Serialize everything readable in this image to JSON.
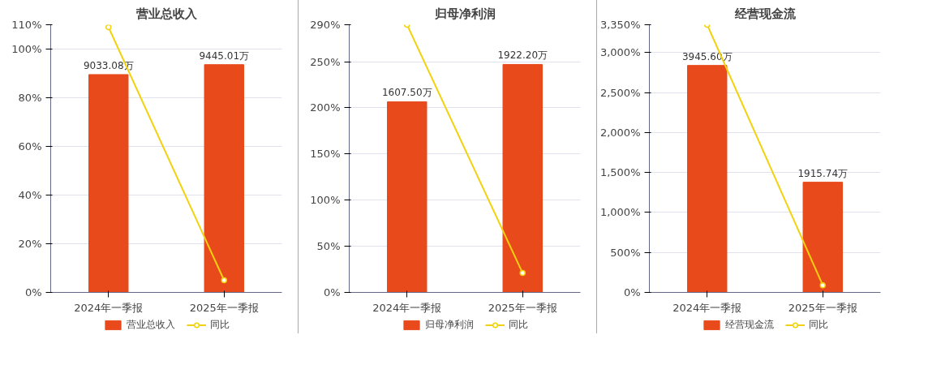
{
  "chart_data": [
    {
      "type": "bar",
      "title": "营业总收入",
      "categories": [
        "2024年一季报",
        "2025年一季报"
      ],
      "ylim": [
        0,
        110
      ],
      "yticks": [
        {
          "value": 0,
          "label": "0%"
        },
        {
          "value": 20,
          "label": "20%"
        },
        {
          "value": 40,
          "label": "40%"
        },
        {
          "value": 60,
          "label": "60%"
        },
        {
          "value": 80,
          "label": "80%"
        },
        {
          "value": 100,
          "label": "100%"
        },
        {
          "value": 110,
          "label": "110%"
        }
      ],
      "y2lim": [
        0,
        11100
      ],
      "grid": "y",
      "legend": "bottom",
      "tick_labels": "y",
      "series": [
        {
          "name": "营业总收入",
          "axis": "y2",
          "color": "#e84a1c",
          "values": [
            9033.08,
            9445.01
          ],
          "value_labels": [
            "9033.08万",
            "9445.01万"
          ]
        },
        {
          "name": "同比",
          "type": "line",
          "color": "#f2d20f",
          "marker": "circle",
          "values": [
            109,
            5
          ]
        }
      ]
    },
    {
      "type": "bar",
      "title": "归母净利润",
      "categories": [
        "2024年一季报",
        "2025年一季报"
      ],
      "ylim": [
        0,
        290
      ],
      "yticks": [
        {
          "value": 0,
          "label": "0%"
        },
        {
          "value": 50,
          "label": "50%"
        },
        {
          "value": 100,
          "label": "100%"
        },
        {
          "value": 150,
          "label": "150%"
        },
        {
          "value": 200,
          "label": "200%"
        },
        {
          "value": 250,
          "label": "250%"
        },
        {
          "value": 290,
          "label": "290%"
        }
      ],
      "y2lim": [
        0,
        2257
      ],
      "grid": "y",
      "legend": "bottom",
      "tick_labels": "y",
      "series": [
        {
          "name": "归母净利润",
          "axis": "y2",
          "color": "#e84a1c",
          "values": [
            1607.5,
            1922.2
          ],
          "value_labels": [
            "1607.50万",
            "1922.20万"
          ]
        },
        {
          "name": "同比",
          "type": "line",
          "color": "#f2d20f",
          "marker": "circle",
          "values": [
            290,
            21
          ]
        }
      ]
    },
    {
      "type": "bar",
      "title": "经营现金流",
      "categories": [
        "2024年一季报",
        "2025年一季报"
      ],
      "ylim": [
        0,
        3350
      ],
      "yticks": [
        {
          "value": 0,
          "label": "0%"
        },
        {
          "value": 500,
          "label": "500%"
        },
        {
          "value": 1000,
          "label": "1,000%"
        },
        {
          "value": 1500,
          "label": "1,500%"
        },
        {
          "value": 2000,
          "label": "2,000%"
        },
        {
          "value": 2500,
          "label": "2,500%"
        },
        {
          "value": 3000,
          "label": "3,000%"
        },
        {
          "value": 3350,
          "label": "3,350%"
        }
      ],
      "y2lim": [
        0,
        4653
      ],
      "grid": "y",
      "legend": "bottom",
      "tick_labels": "y",
      "series": [
        {
          "name": "经营现金流",
          "axis": "y2",
          "color": "#e84a1c",
          "values": [
            3945.6,
            1915.74
          ],
          "value_labels": [
            "3945.60万",
            "1915.74万"
          ]
        },
        {
          "name": "同比",
          "type": "line",
          "color": "#f2d20f",
          "marker": "circle",
          "values": [
            3350,
            90
          ]
        }
      ]
    }
  ]
}
